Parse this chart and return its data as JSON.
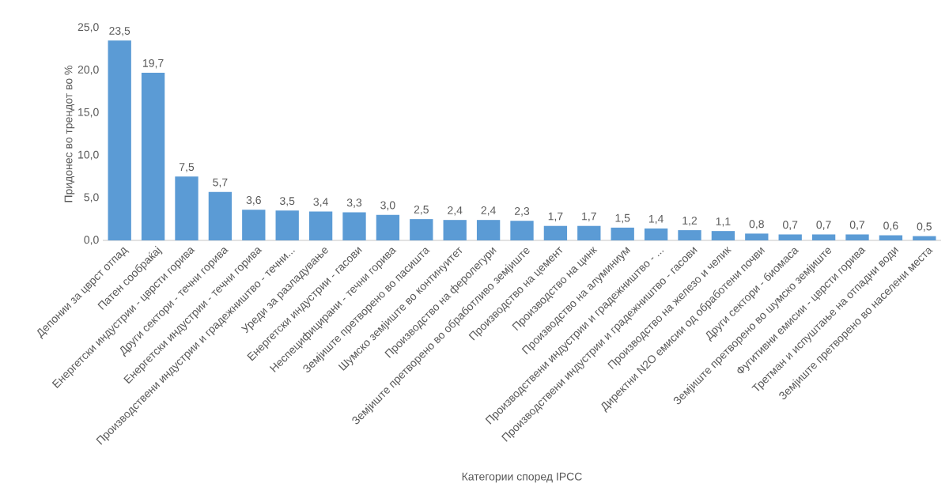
{
  "chart_data": {
    "type": "bar",
    "xlabel": "Категории според IPCC",
    "ylabel": "Придонес во трендот во %",
    "categories": [
      "Депонии за цврст отпад",
      "Патен сообраќај",
      "Енергетски индустрии - цврсти горива",
      "Други сектори - течни горива",
      "Енергетски индустрии - течни горива",
      "Производствени индустрии и градежништво - течни...",
      "Уреди за разладување",
      "Енергетски индустрии - гасови",
      "Неспецифицирани - течни горива",
      "Земјиште претворено во пасишта",
      "Шумско земјиште во континуитет",
      "Производство на феролегури",
      "Земјиште претворено во обработливо земјиште",
      "Производство на цемент",
      "Производство на цинк",
      "Производство на алуминиум",
      "Производствени индустрии и градежништво - ...",
      "Производствени индустрии и градежништво - гасови",
      "Производство на железо и челик",
      "Директни N2O емисии од обработени почви",
      "Други сектори - биомаса",
      "Земјиште претворено во шумско земјиште",
      "Фугитивни емисии - цврсти горива",
      "Третман и испуштање на отпадни води",
      "Земјиште претворено во населени места"
    ],
    "values": [
      23.5,
      19.7,
      7.5,
      5.7,
      3.6,
      3.5,
      3.4,
      3.3,
      3.0,
      2.5,
      2.4,
      2.4,
      2.3,
      1.7,
      1.7,
      1.5,
      1.4,
      1.2,
      1.1,
      0.8,
      0.7,
      0.7,
      0.7,
      0.6,
      0.5
    ],
    "value_labels": [
      "23,5",
      "19,7",
      "7,5",
      "5,7",
      "3,6",
      "3,5",
      "3,4",
      "3,3",
      "3,0",
      "2,5",
      "2,4",
      "2,4",
      "2,3",
      "1,7",
      "1,7",
      "1,5",
      "1,4",
      "1,2",
      "1,1",
      "0,8",
      "0,7",
      "0,7",
      "0,7",
      "0,6",
      "0,5"
    ],
    "color": "#5b9bd5",
    "ylim": [
      0,
      25
    ],
    "yticks": [
      {
        "value": 0,
        "label": "0,0"
      },
      {
        "value": 5,
        "label": "5,0"
      },
      {
        "value": 10,
        "label": "10,0"
      },
      {
        "value": 15,
        "label": "15,0"
      },
      {
        "value": 20,
        "label": "20,0"
      },
      {
        "value": 25,
        "label": "25,0"
      }
    ],
    "grid": false
  }
}
